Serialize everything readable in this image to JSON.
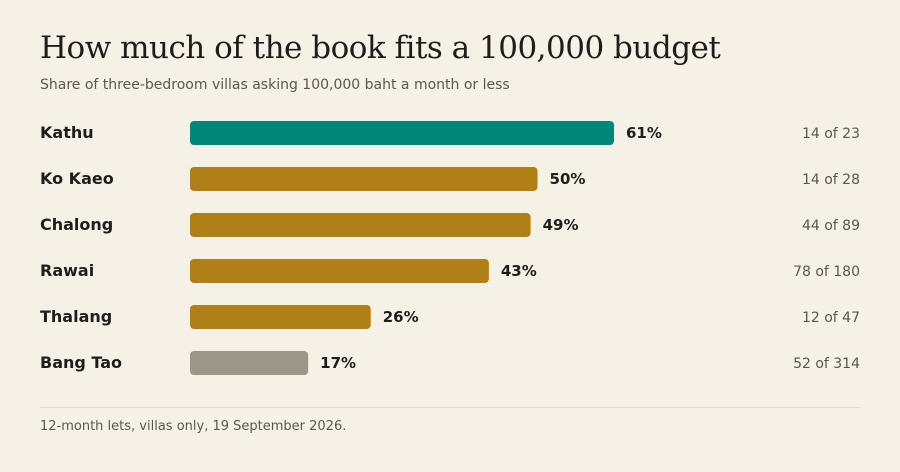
{
  "header": {
    "title": "How much of the book fits a 100,000 budget",
    "subtitle": "Share of three-bedroom villas asking 100,000 baht a month or less"
  },
  "footer": {
    "note": "12-month lets, villas only, 19 September 2026."
  },
  "colors": {
    "highlight": "#00877a",
    "default": "#b07f18",
    "muted": "#9a9689"
  },
  "chart_data": {
    "type": "bar",
    "orientation": "horizontal",
    "title": "How much of the book fits a 100,000 budget",
    "subtitle": "Share of three-bedroom villas asking 100,000 baht a month or less",
    "categories": [
      "Kathu",
      "Ko Kaeo",
      "Chalong",
      "Rawai",
      "Thalang",
      "Bang Tao"
    ],
    "values": [
      61,
      50,
      49,
      43,
      26,
      17
    ],
    "value_labels": [
      "61%",
      "50%",
      "49%",
      "43%",
      "26%",
      "17%"
    ],
    "counts": [
      "14 of 23",
      "14 of 28",
      "44 of 89",
      "78 of 180",
      "12 of 47",
      "52 of 314"
    ],
    "bar_colors": [
      "highlight",
      "default",
      "default",
      "default",
      "default",
      "muted"
    ],
    "unit": "%",
    "xlim": [
      0,
      61
    ],
    "grid": false,
    "legend": "none"
  }
}
